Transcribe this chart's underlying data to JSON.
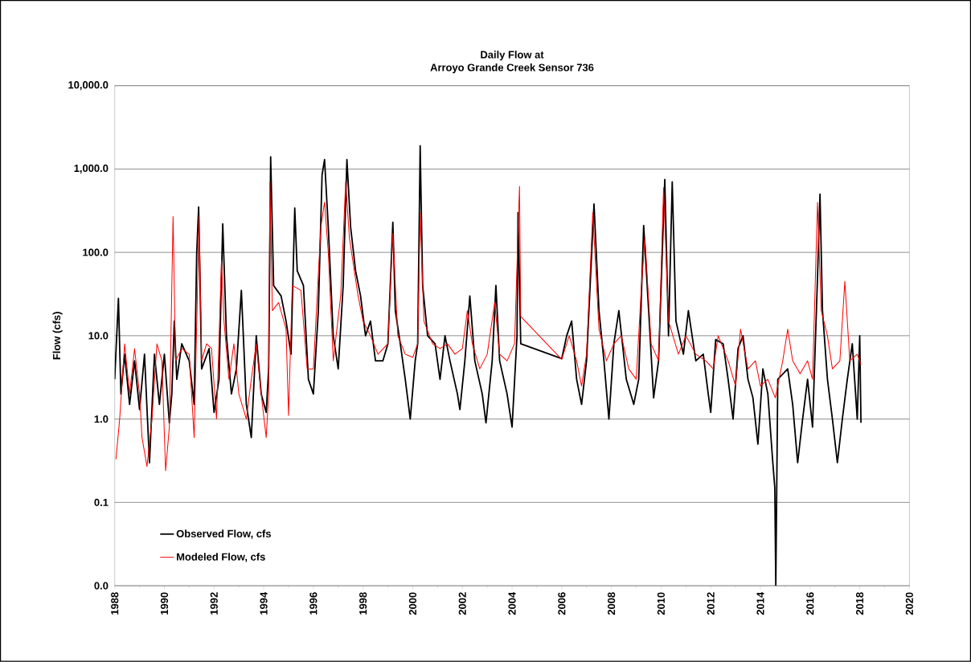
{
  "chart_data": {
    "type": "line",
    "title": "Daily Flow at",
    "subtitle": "Arroyo Grande Creek Sensor 736",
    "ylabel": "Flow (cfs)",
    "log": "y",
    "grid": "y",
    "legend": "bottom left",
    "marker": "none",
    "line_style": "solid",
    "xlim": [
      1988,
      2020
    ],
    "xticks": [
      1988,
      1990,
      1992,
      1994,
      1996,
      1998,
      2000,
      2002,
      2004,
      2006,
      2008,
      2010,
      2012,
      2014,
      2016,
      2018,
      2020
    ],
    "ylim": [
      0.01,
      10000
    ],
    "yticks": [
      {
        "value": 0.01,
        "label": "0.0"
      },
      {
        "value": 0.1,
        "label": "0.1"
      },
      {
        "value": 1,
        "label": "1.0"
      },
      {
        "value": 10,
        "label": "10.0"
      },
      {
        "value": 100,
        "label": "100.0"
      },
      {
        "value": 1000,
        "label": "1,000.0"
      },
      {
        "value": 10000,
        "label": "10,000.0"
      }
    ],
    "series": [
      {
        "name": "Observed Flow, cfs",
        "color": "#000000",
        "x": [
          1988.0,
          1988.15,
          1988.25,
          1988.4,
          1988.6,
          1988.8,
          1989.0,
          1989.2,
          1989.4,
          1989.6,
          1989.8,
          1990.0,
          1990.2,
          1990.3,
          1990.4,
          1990.5,
          1990.7,
          1991.0,
          1991.2,
          1991.3,
          1991.38,
          1991.5,
          1991.8,
          1992.0,
          1992.2,
          1992.35,
          1992.5,
          1992.7,
          1992.9,
          1993.1,
          1993.3,
          1993.5,
          1993.7,
          1993.9,
          1994.1,
          1994.2,
          1994.28,
          1994.4,
          1994.7,
          1994.9,
          1995.1,
          1995.25,
          1995.35,
          1995.6,
          1995.8,
          1996.0,
          1996.2,
          1996.35,
          1996.45,
          1996.6,
          1996.8,
          1997.0,
          1997.2,
          1997.35,
          1997.5,
          1997.7,
          1997.9,
          1998.1,
          1998.3,
          1998.5,
          1998.8,
          1999.0,
          1999.2,
          1999.3,
          1999.5,
          1999.7,
          1999.9,
          2000.1,
          2000.2,
          2000.3,
          2000.4,
          2000.6,
          2000.9,
          2001.1,
          2001.3,
          2001.5,
          2001.8,
          2001.9,
          2002.1,
          2002.3,
          2002.5,
          2002.8,
          2002.95,
          2003.2,
          2003.35,
          2003.5,
          2003.8,
          2004.0,
          2004.2,
          2004.24,
          2004.35,
          2006.0,
          2006.2,
          2006.4,
          2006.6,
          2006.8,
          2007.0,
          2007.3,
          2007.5,
          2007.7,
          2007.9,
          2008.1,
          2008.3,
          2008.6,
          2008.9,
          2009.1,
          2009.3,
          2009.5,
          2009.7,
          2009.9,
          2010.15,
          2010.3,
          2010.45,
          2010.6,
          2010.9,
          2011.1,
          2011.4,
          2011.7,
          2011.9,
          2012.0,
          2012.2,
          2012.5,
          2012.7,
          2012.9,
          2013.1,
          2013.3,
          2013.5,
          2013.7,
          2013.9,
          2014.1,
          2014.3,
          2014.5,
          2014.58,
          2014.62,
          2014.7,
          2015.1,
          2015.3,
          2015.5,
          2015.7,
          2015.9,
          2016.1,
          2016.3,
          2016.4,
          2016.5,
          2016.7,
          2016.9,
          2017.1,
          2017.3,
          2017.5,
          2017.7,
          2017.9,
          2018.0,
          2018.05
        ],
        "values": [
          3,
          28,
          2,
          6,
          1.5,
          5,
          1.3,
          6,
          0.3,
          6,
          1.5,
          6,
          0.9,
          2,
          15,
          3,
          8,
          5,
          1.5,
          95,
          350,
          4,
          7,
          1.2,
          3,
          220,
          10,
          2,
          4,
          35,
          1.5,
          0.6,
          10,
          2,
          1.2,
          4,
          1400,
          40,
          30,
          15,
          6,
          340,
          60,
          40,
          3,
          2,
          20,
          850,
          1300,
          200,
          10,
          4,
          40,
          1300,
          200,
          60,
          30,
          10,
          15,
          5,
          5,
          8,
          230,
          20,
          8,
          3,
          1.0,
          5,
          8,
          1900,
          40,
          10,
          8,
          3,
          10,
          5,
          2,
          1.3,
          5,
          30,
          5,
          2,
          0.9,
          5,
          40,
          5,
          2,
          0.8,
          10,
          300,
          8,
          5.3,
          10,
          15,
          3,
          1.5,
          5,
          380,
          20,
          5,
          1.0,
          8,
          20,
          3,
          1.5,
          3,
          210,
          20,
          1.8,
          5,
          750,
          10,
          700,
          15,
          6,
          20,
          5,
          6,
          2,
          1.2,
          9,
          8,
          3,
          1.0,
          7,
          10,
          3,
          1.8,
          0.5,
          4,
          2,
          0.3,
          0.15,
          0.01,
          3,
          4,
          1.5,
          0.3,
          1,
          3,
          0.8,
          50,
          500,
          20,
          3,
          1,
          0.3,
          1,
          3,
          8,
          1,
          10,
          0.9
        ]
      },
      {
        "name": "Modeled Flow, cfs",
        "color": "#ff0000",
        "x": [
          1988.05,
          1988.2,
          1988.4,
          1988.6,
          1988.8,
          1989.0,
          1989.1,
          1989.3,
          1989.5,
          1989.7,
          1989.9,
          1990.05,
          1990.2,
          1990.35,
          1990.45,
          1990.7,
          1991.0,
          1991.2,
          1991.4,
          1991.5,
          1991.7,
          1991.9,
          1992.1,
          1992.3,
          1992.4,
          1992.6,
          1992.8,
          1993.0,
          1993.3,
          1993.5,
          1993.7,
          1993.9,
          1994.1,
          1994.2,
          1994.25,
          1994.35,
          1994.6,
          1994.9,
          1995.0,
          1995.15,
          1995.5,
          1995.75,
          1996.0,
          1996.3,
          1996.45,
          1996.6,
          1996.8,
          1997.1,
          1997.3,
          1997.45,
          1997.8,
          1998.0,
          1998.3,
          1998.6,
          1999.0,
          1999.2,
          1999.4,
          1999.7,
          2000.0,
          2000.2,
          2000.3,
          2000.45,
          2000.8,
          2001.1,
          2001.4,
          2001.7,
          2002.0,
          2002.2,
          2002.4,
          2002.7,
          2003.0,
          2003.3,
          2003.5,
          2003.8,
          2004.1,
          2004.3,
          2004.35,
          2006.0,
          2006.3,
          2006.6,
          2006.8,
          2007.0,
          2007.25,
          2007.5,
          2007.8,
          2008.1,
          2008.4,
          2008.7,
          2009.0,
          2009.2,
          2009.35,
          2009.6,
          2009.9,
          2010.1,
          2010.3,
          2010.7,
          2011.0,
          2011.4,
          2011.8,
          2012.1,
          2012.3,
          2012.7,
          2013.0,
          2013.2,
          2013.5,
          2013.8,
          2014.0,
          2014.3,
          2014.6,
          2014.9,
          2015.1,
          2015.3,
          2015.6,
          2015.9,
          2016.1,
          2016.3,
          2016.45,
          2016.7,
          2016.9,
          2017.2,
          2017.4,
          2017.6,
          2017.9,
          2018.05
        ],
        "values": [
          0.33,
          1,
          8,
          2,
          7,
          2,
          0.6,
          0.27,
          1,
          8,
          5,
          0.24,
          0.8,
          270,
          5,
          7,
          6,
          0.6,
          270,
          5,
          8,
          7,
          1.0,
          80,
          15,
          3,
          8,
          2,
          1.0,
          3,
          8,
          2,
          0.6,
          2,
          700,
          20,
          25,
          12,
          1.1,
          40,
          35,
          4,
          4,
          200,
          400,
          100,
          5,
          30,
          700,
          150,
          30,
          15,
          10,
          6,
          8,
          170,
          10,
          6,
          5.5,
          8,
          300,
          15,
          8,
          7,
          8,
          6,
          7,
          20,
          8,
          4,
          6,
          25,
          6,
          5,
          8,
          620,
          17,
          5.2,
          10,
          5,
          2.5,
          6,
          300,
          12,
          5,
          8,
          10,
          4,
          3,
          35,
          150,
          8,
          5,
          600,
          15,
          6,
          10,
          6,
          5,
          4,
          10,
          5,
          2.5,
          12,
          4,
          5,
          2.5,
          3,
          1.8,
          5,
          12,
          5,
          3.5,
          5,
          3,
          400,
          20,
          10,
          4,
          5,
          45,
          5,
          6,
          4.5
        ]
      }
    ]
  }
}
